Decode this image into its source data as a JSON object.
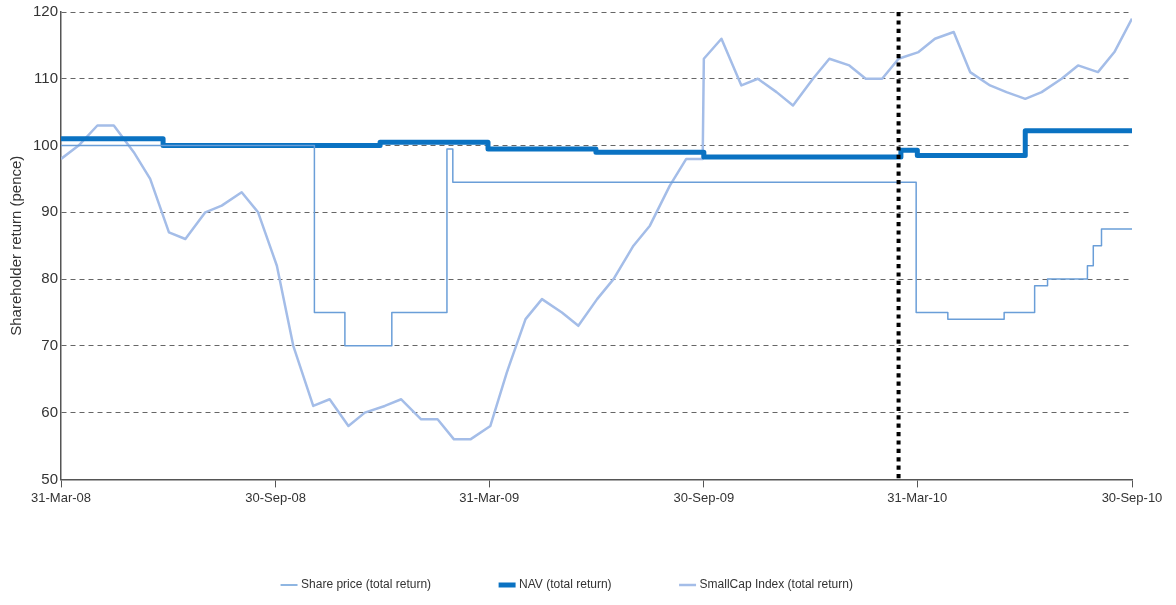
{
  "chart_data": {
    "type": "line",
    "ylabel": "Shareholder return (pence)",
    "xlim": [
      "2008-03-31",
      "2010-09-30"
    ],
    "xticks": [
      {
        "value": "2008-03-31",
        "label": "31-Mar-08"
      },
      {
        "value": "2008-09-30",
        "label": "30-Sep-08"
      },
      {
        "value": "2009-03-31",
        "label": "31-Mar-09"
      },
      {
        "value": "2009-09-30",
        "label": "30-Sep-09"
      },
      {
        "value": "2010-03-31",
        "label": "31-Mar-10"
      },
      {
        "value": "2010-09-30",
        "label": "30-Sep-10"
      }
    ],
    "ylim": [
      50,
      120
    ],
    "yticks": [
      50,
      60,
      70,
      80,
      90,
      100,
      110,
      120
    ],
    "grid": "y",
    "legend": "bottom",
    "ref_lines": [
      {
        "axis": "x",
        "value": "2010-03-15",
        "label": null,
        "color": "#000000",
        "line_style": "dotted"
      }
    ],
    "series": [
      {
        "name": "Share price (total return)",
        "type": "step",
        "color": "#6a9ed8",
        "x": [
          "2008-03-31",
          "2008-11-02",
          "2008-11-28",
          "2009-01-07",
          "2009-02-23",
          "2009-02-28",
          "2010-03-30",
          "2010-04-26",
          "2010-06-13",
          "2010-07-09",
          "2010-07-20",
          "2010-08-23",
          "2010-08-28",
          "2010-09-04",
          "2010-09-30"
        ],
        "values": [
          100,
          75,
          70,
          75,
          99.5,
          94.5,
          75,
          74,
          75,
          79,
          80,
          82,
          85,
          87.5,
          87.5
        ]
      },
      {
        "name": "NAV (total return)",
        "type": "step",
        "color": "#0a72c2",
        "x": [
          "2008-03-31",
          "2008-06-26",
          "2008-12-28",
          "2009-03-30",
          "2009-06-30",
          "2009-09-30",
          "2010-03-17",
          "2010-03-31",
          "2010-07-01",
          "2010-09-30"
        ],
        "values": [
          101,
          100,
          100.5,
          99.5,
          99,
          98.3,
          99.3,
          98.5,
          102.2,
          102.2
        ]
      },
      {
        "name": "SmallCap Index (total return)",
        "type": "line",
        "color": "#a4bde8",
        "x": [
          "2008-03-31",
          "2008-04-15",
          "2008-05-01",
          "2008-05-15",
          "2008-06-01",
          "2008-06-15",
          "2008-07-01",
          "2008-07-15",
          "2008-08-01",
          "2008-08-15",
          "2008-09-01",
          "2008-09-15",
          "2008-10-01",
          "2008-10-15",
          "2008-11-01",
          "2008-11-15",
          "2008-12-01",
          "2008-12-15",
          "2009-01-01",
          "2009-01-15",
          "2009-02-01",
          "2009-02-15",
          "2009-03-01",
          "2009-03-15",
          "2009-04-01",
          "2009-04-15",
          "2009-05-01",
          "2009-05-15",
          "2009-06-01",
          "2009-06-15",
          "2009-07-01",
          "2009-07-15",
          "2009-08-01",
          "2009-08-15",
          "2009-09-01",
          "2009-09-15",
          "2009-09-29",
          "2009-09-30",
          "2009-10-15",
          "2009-11-01",
          "2009-11-15",
          "2009-12-01",
          "2009-12-15",
          "2010-01-01",
          "2010-01-15",
          "2010-02-01",
          "2010-02-15",
          "2010-03-01",
          "2010-03-15",
          "2010-04-01",
          "2010-04-15",
          "2010-05-01",
          "2010-05-15",
          "2010-06-01",
          "2010-06-15",
          "2010-07-01",
          "2010-07-15",
          "2010-08-01",
          "2010-08-15",
          "2010-09-01",
          "2010-09-15",
          "2010-09-30"
        ],
        "values": [
          98,
          100,
          103,
          103,
          99,
          95,
          87,
          86,
          90,
          91,
          93,
          90,
          82,
          70,
          61,
          62,
          58,
          60,
          61,
          62,
          59,
          59,
          56,
          56,
          58,
          66,
          74,
          77,
          75,
          73,
          77,
          80,
          85,
          88,
          94,
          98,
          98,
          113,
          116,
          109,
          110,
          108,
          106,
          110,
          113,
          112,
          110,
          110,
          113,
          114,
          116,
          117,
          111,
          109,
          108,
          107,
          108,
          110,
          112,
          111,
          114,
          119
        ]
      }
    ]
  }
}
